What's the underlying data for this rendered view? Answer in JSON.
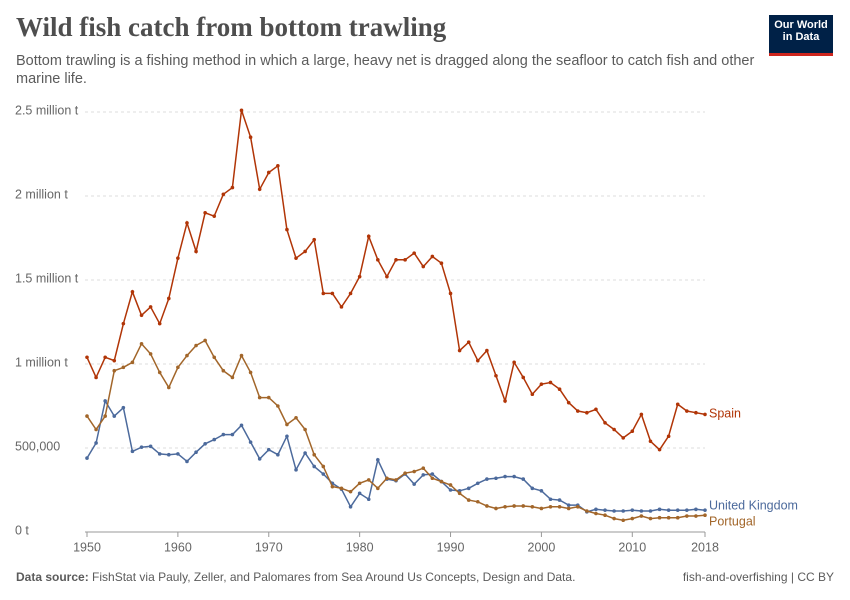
{
  "chart_data": {
    "type": "line",
    "title": "Wild fish catch from bottom trawling",
    "subtitle": "Bottom trawling is a fishing method in which a large, heavy net is dragged along the seafloor to catch fish and other marine life.",
    "logo": [
      "Our World",
      "in Data"
    ],
    "source_label": "Data source:",
    "source": "FishStat via Pauly, Zeller, and Palomares from Sea Around Us Concepts, Design and Data.",
    "license": "fish-and-overfishing | CC BY",
    "x": [
      1950,
      1951,
      1952,
      1953,
      1954,
      1955,
      1956,
      1957,
      1958,
      1959,
      1960,
      1961,
      1962,
      1963,
      1964,
      1965,
      1966,
      1967,
      1968,
      1969,
      1970,
      1971,
      1972,
      1973,
      1974,
      1975,
      1976,
      1977,
      1978,
      1979,
      1980,
      1981,
      1982,
      1983,
      1984,
      1985,
      1986,
      1987,
      1988,
      1989,
      1990,
      1991,
      1992,
      1993,
      1994,
      1995,
      1996,
      1997,
      1998,
      1999,
      2000,
      2001,
      2002,
      2003,
      2004,
      2005,
      2006,
      2007,
      2008,
      2009,
      2010,
      2011,
      2012,
      2013,
      2014,
      2015,
      2016,
      2017,
      2018
    ],
    "xlim": [
      1950,
      2018
    ],
    "xticks": [
      1950,
      1960,
      1970,
      1980,
      1990,
      2000,
      2010,
      2018
    ],
    "ylim": [
      0,
      2500000
    ],
    "yticks": [
      {
        "value": 0,
        "label": "0 t"
      },
      {
        "value": 500000,
        "label": "500,000"
      },
      {
        "value": 1000000,
        "label": "1 million t"
      },
      {
        "value": 1500000,
        "label": "1.5 million t"
      },
      {
        "value": 2000000,
        "label": "2 million t"
      },
      {
        "value": 2500000,
        "label": "2.5 million t"
      }
    ],
    "grid": true,
    "series": [
      {
        "name": "Spain",
        "color": "#b13507",
        "values": [
          1040000,
          920000,
          1040000,
          1020000,
          1240000,
          1430000,
          1290000,
          1340000,
          1240000,
          1390000,
          1630000,
          1840000,
          1670000,
          1900000,
          1880000,
          2010000,
          2050000,
          2510000,
          2350000,
          2040000,
          2140000,
          2180000,
          1800000,
          1630000,
          1670000,
          1740000,
          1420000,
          1420000,
          1340000,
          1420000,
          1520000,
          1760000,
          1620000,
          1520000,
          1620000,
          1620000,
          1660000,
          1580000,
          1640000,
          1600000,
          1420000,
          1080000,
          1130000,
          1020000,
          1080000,
          930000,
          780000,
          1010000,
          920000,
          820000,
          880000,
          890000,
          850000,
          770000,
          720000,
          710000,
          730000,
          650000,
          610000,
          560000,
          600000,
          700000,
          540000,
          490000,
          570000,
          760000,
          720000,
          710000,
          700000
        ]
      },
      {
        "name": "United Kingdom",
        "color": "#4c6a9c",
        "values": [
          440000,
          530000,
          780000,
          690000,
          740000,
          480000,
          505000,
          510000,
          465000,
          460000,
          465000,
          420000,
          475000,
          525000,
          550000,
          580000,
          580000,
          635000,
          535000,
          435000,
          490000,
          460000,
          570000,
          370000,
          470000,
          390000,
          345000,
          290000,
          255000,
          150000,
          230000,
          195000,
          430000,
          315000,
          305000,
          345000,
          285000,
          340000,
          345000,
          300000,
          250000,
          245000,
          260000,
          290000,
          315000,
          320000,
          330000,
          330000,
          315000,
          260000,
          245000,
          195000,
          190000,
          160000,
          160000,
          120000,
          135000,
          130000,
          125000,
          125000,
          130000,
          125000,
          125000,
          135000,
          130000,
          130000,
          130000,
          135000,
          130000
        ]
      },
      {
        "name": "Portugal",
        "color": "#a2662a",
        "values": [
          690000,
          610000,
          690000,
          960000,
          980000,
          1010000,
          1120000,
          1060000,
          950000,
          860000,
          980000,
          1050000,
          1110000,
          1140000,
          1040000,
          960000,
          920000,
          1050000,
          950000,
          800000,
          800000,
          750000,
          640000,
          680000,
          610000,
          460000,
          390000,
          270000,
          260000,
          240000,
          290000,
          310000,
          260000,
          320000,
          310000,
          350000,
          360000,
          380000,
          320000,
          300000,
          280000,
          230000,
          190000,
          180000,
          155000,
          140000,
          150000,
          155000,
          155000,
          150000,
          140000,
          150000,
          150000,
          140000,
          150000,
          125000,
          110000,
          100000,
          80000,
          70000,
          80000,
          95000,
          80000,
          85000,
          85000,
          85000,
          95000,
          95000,
          100000
        ]
      }
    ]
  }
}
